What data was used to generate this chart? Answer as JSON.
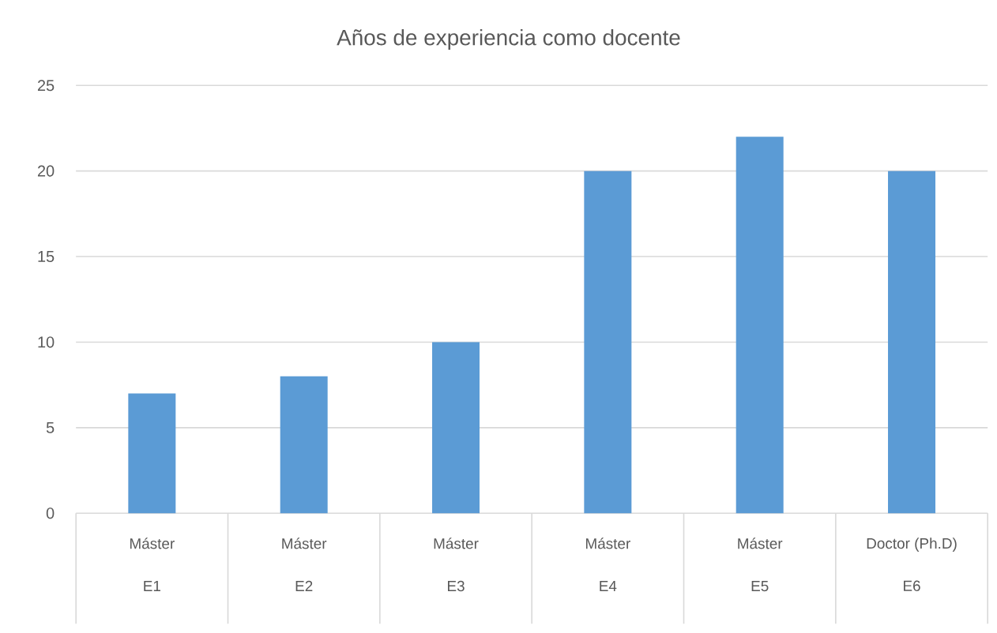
{
  "chart_data": {
    "type": "bar",
    "title": "Años de experiencia como docente",
    "categories": [
      "Máster\nE1",
      "Máster\nE2",
      "Máster\nE3",
      "Máster\nE4",
      "Máster\nE5",
      "Doctor (Ph.D)\nE6"
    ],
    "values": [
      7,
      8,
      10,
      20,
      22,
      20
    ],
    "color": "#5b9bd5",
    "ylim": [
      0,
      25
    ],
    "yticks": [
      0,
      5,
      10,
      15,
      20,
      25
    ],
    "grid": "y"
  }
}
